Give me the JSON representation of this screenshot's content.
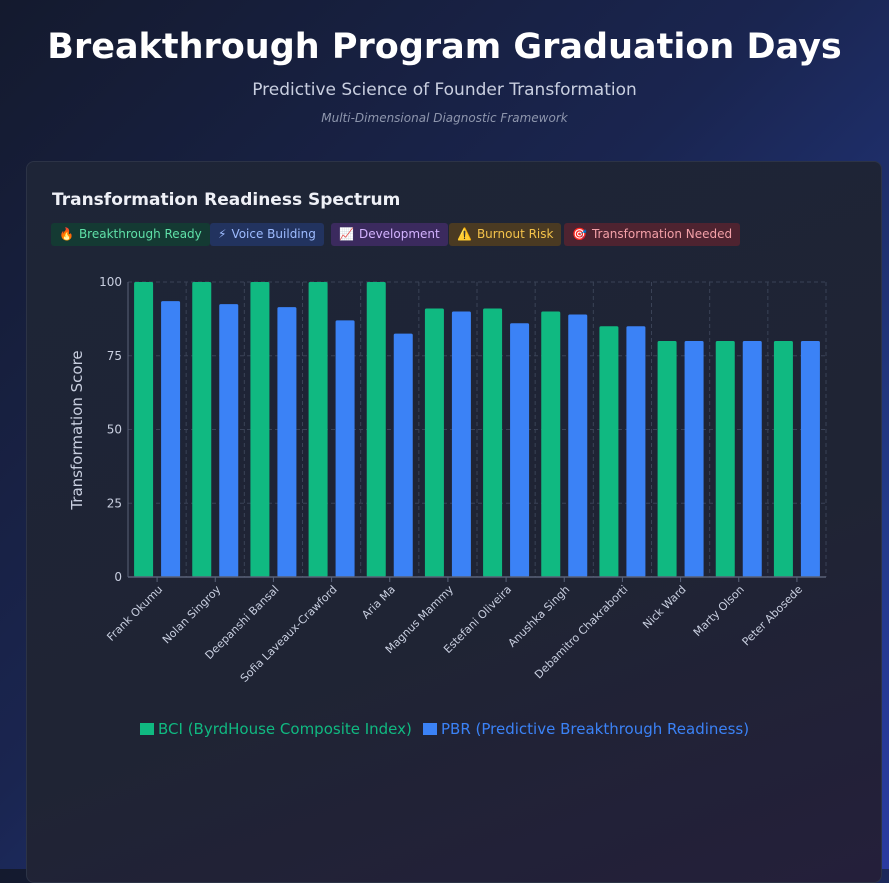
{
  "header": {
    "title": "Breakthrough Program Graduation Days",
    "subtitle": "Predictive Science of Founder Transformation",
    "tagline": "Multi-Dimensional Diagnostic Framework"
  },
  "card": {
    "title": "Transformation Readiness Spectrum",
    "badges": [
      {
        "emoji": "🔥",
        "label": "Breakthrough Ready"
      },
      {
        "emoji": "⚡",
        "label": "Voice Building"
      },
      {
        "emoji": "📈",
        "label": "Development"
      },
      {
        "emoji": "⚠️",
        "label": "Burnout Risk"
      },
      {
        "emoji": "🎯",
        "label": "Transformation Needed"
      }
    ]
  },
  "colors": {
    "bci": "#10b981",
    "pbr": "#3b82f6",
    "grid": "#3a4256",
    "axis": "#5a6278",
    "tick": "#c9cfe0"
  },
  "chart_data": {
    "type": "bar",
    "title": "Transformation Readiness Spectrum",
    "xlabel": "",
    "ylabel": "Transformation Score",
    "ylim": [
      0,
      100
    ],
    "yticks": [
      0,
      25,
      50,
      75,
      100
    ],
    "grid": true,
    "legend_position": "bottom",
    "categories": [
      "Frank Okumu",
      "Nolan Singroy",
      "Deepanshi Bansal",
      "Sofia Laveaux-Crawford",
      "Aria Ma",
      "Magnus Mammy",
      "Estefani Oliveira",
      "Anushka Singh",
      "Debamitro Chakraborti",
      "Nick Ward",
      "Marty Olson",
      "Peter Abosede"
    ],
    "series": [
      {
        "name": "BCI (ByrdHouse Composite Index)",
        "values": [
          100,
          100,
          100,
          100,
          100,
          91,
          91,
          90,
          85,
          80,
          80,
          80
        ]
      },
      {
        "name": "PBR (Predictive Breakthrough Readiness)",
        "values": [
          93.5,
          92.5,
          91.5,
          87,
          82.5,
          90,
          86,
          89,
          85,
          80,
          80,
          80
        ]
      }
    ]
  }
}
